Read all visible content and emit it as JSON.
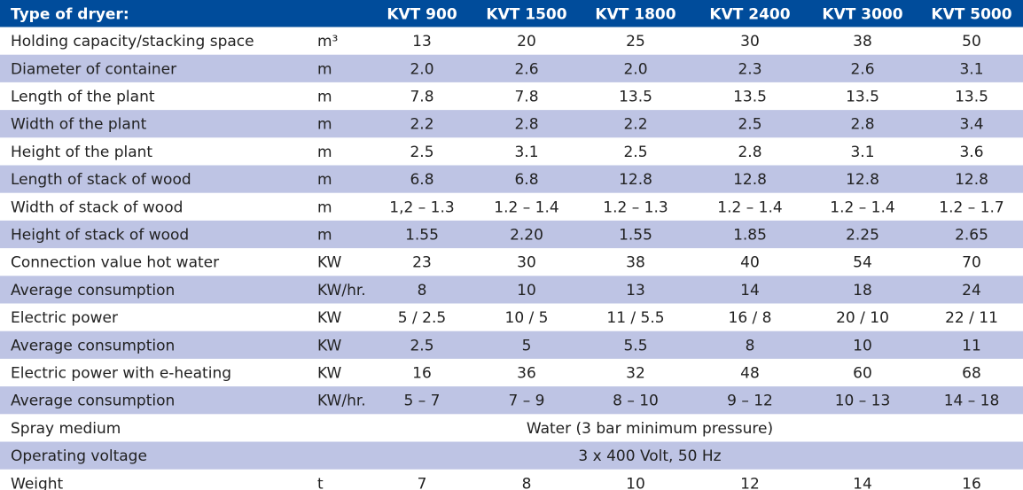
{
  "header": {
    "cells": [
      "Type of dryer:",
      "KVT 900",
      "KVT 1500",
      "KVT 1800",
      "KVT 2400",
      "KVT 3000",
      "KVT 5000"
    ]
  },
  "rows": [
    {
      "label": "Holding capacity/stacking space",
      "unit": "m³",
      "values": [
        "13",
        "20",
        "25",
        "30",
        "38",
        "50"
      ]
    },
    {
      "label": "Diameter of container",
      "unit": "m",
      "values": [
        "2.0",
        "2.6",
        "2.0",
        "2.3",
        "2.6",
        "3.1"
      ]
    },
    {
      "label": "Length of the plant",
      "unit": "m",
      "values": [
        "7.8",
        "7.8",
        "13.5",
        "13.5",
        "13.5",
        "13.5"
      ]
    },
    {
      "label": "Width of the plant",
      "unit": "m",
      "values": [
        "2.2",
        "2.8",
        "2.2",
        "2.5",
        "2.8",
        "3.4"
      ]
    },
    {
      "label": "Height of the plant",
      "unit": "m",
      "values": [
        "2.5",
        "3.1",
        "2.5",
        "2.8",
        "3.1",
        "3.6"
      ]
    },
    {
      "label": "Length of stack of wood",
      "unit": "m",
      "values": [
        "6.8",
        "6.8",
        "12.8",
        "12.8",
        "12.8",
        "12.8"
      ]
    },
    {
      "label": "Width of stack of wood",
      "unit": "m",
      "values": [
        "1,2 – 1.3",
        "1.2 – 1.4",
        "1.2 – 1.3",
        "1.2 – 1.4",
        "1.2 – 1.4",
        "1.2 – 1.7"
      ]
    },
    {
      "label": "Height of stack of wood",
      "unit": "m",
      "values": [
        "1.55",
        "2.20",
        "1.55",
        "1.85",
        "2.25",
        "2.65"
      ]
    },
    {
      "label": "Connection value hot water",
      "unit": "KW",
      "values": [
        "23",
        "30",
        "38",
        "40",
        "54",
        "70"
      ]
    },
    {
      "label": "Average consumption",
      "unit": "KW/hr.",
      "values": [
        "8",
        "10",
        "13",
        "14",
        "18",
        "24"
      ]
    },
    {
      "label": "Electric power",
      "unit": "KW",
      "values": [
        "5 / 2.5",
        "10 / 5",
        "11 / 5.5",
        "16 / 8",
        "20 / 10",
        "22 / 11"
      ]
    },
    {
      "label": "Average consumption",
      "unit": "KW",
      "values": [
        "2.5",
        "5",
        "5.5",
        "8",
        "10",
        "11"
      ]
    },
    {
      "label": "Electric power with e-heating",
      "unit": "KW",
      "values": [
        "16",
        "36",
        "32",
        "48",
        "60",
        "68"
      ]
    },
    {
      "label": "Average consumption",
      "unit": "KW/hr.",
      "values": [
        "5 – 7",
        "7 – 9",
        "8 – 10",
        "9 – 12",
        "10 – 13",
        "14 – 18"
      ]
    },
    {
      "label": "Spray medium",
      "values": [
        "Water (3 bar minimum pressure)"
      ]
    },
    {
      "label": "Operating voltage",
      "values": [
        "3 x 400 Volt, 50 Hz"
      ]
    },
    {
      "label": "Weight",
      "unit": "t",
      "values": [
        "7",
        "8",
        "10",
        "12",
        "14",
        "16"
      ]
    }
  ]
}
